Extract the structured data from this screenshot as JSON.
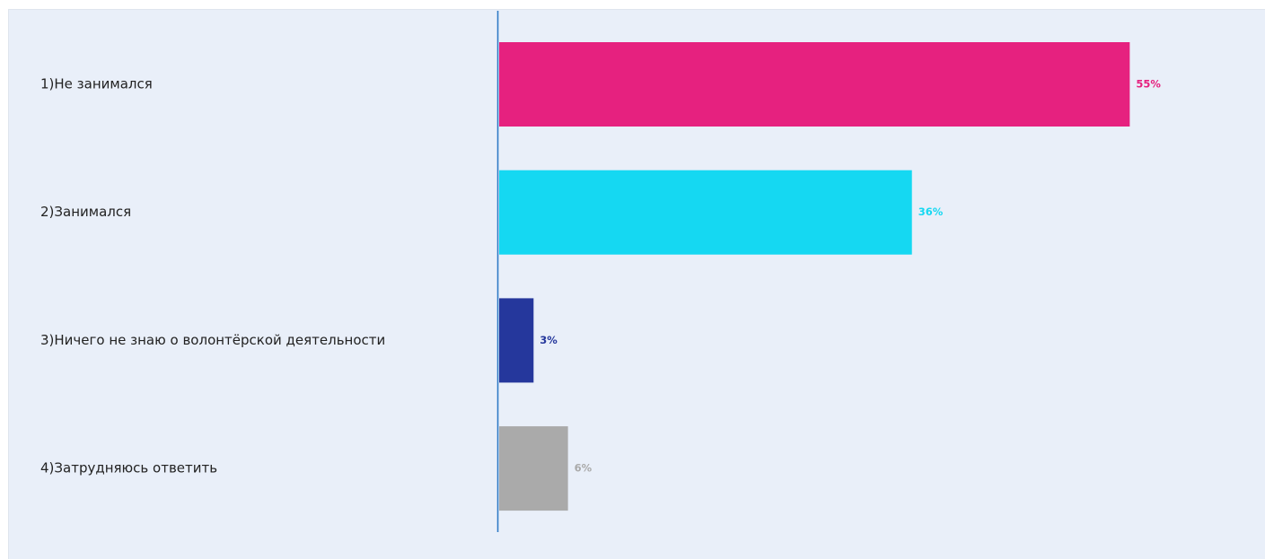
{
  "chart_data": {
    "type": "bar",
    "orientation": "horizontal",
    "categories": [
      "1)Не занимался",
      "2)Занимался",
      "3)Ничего не знаю о волонтёрской деятельности",
      "4)Затрудняюсь ответить"
    ],
    "values": [
      55,
      36,
      3,
      6
    ],
    "value_labels": [
      "55%",
      "36%",
      "3%",
      "6%"
    ],
    "colors": [
      "#e6217f",
      "#15d8f2",
      "#25379c",
      "#aaaaaa"
    ],
    "xlim": [
      0,
      66
    ],
    "grid": false,
    "legend": "none",
    "axis_color": "#2f7bc6",
    "background": "#e9eff9"
  }
}
